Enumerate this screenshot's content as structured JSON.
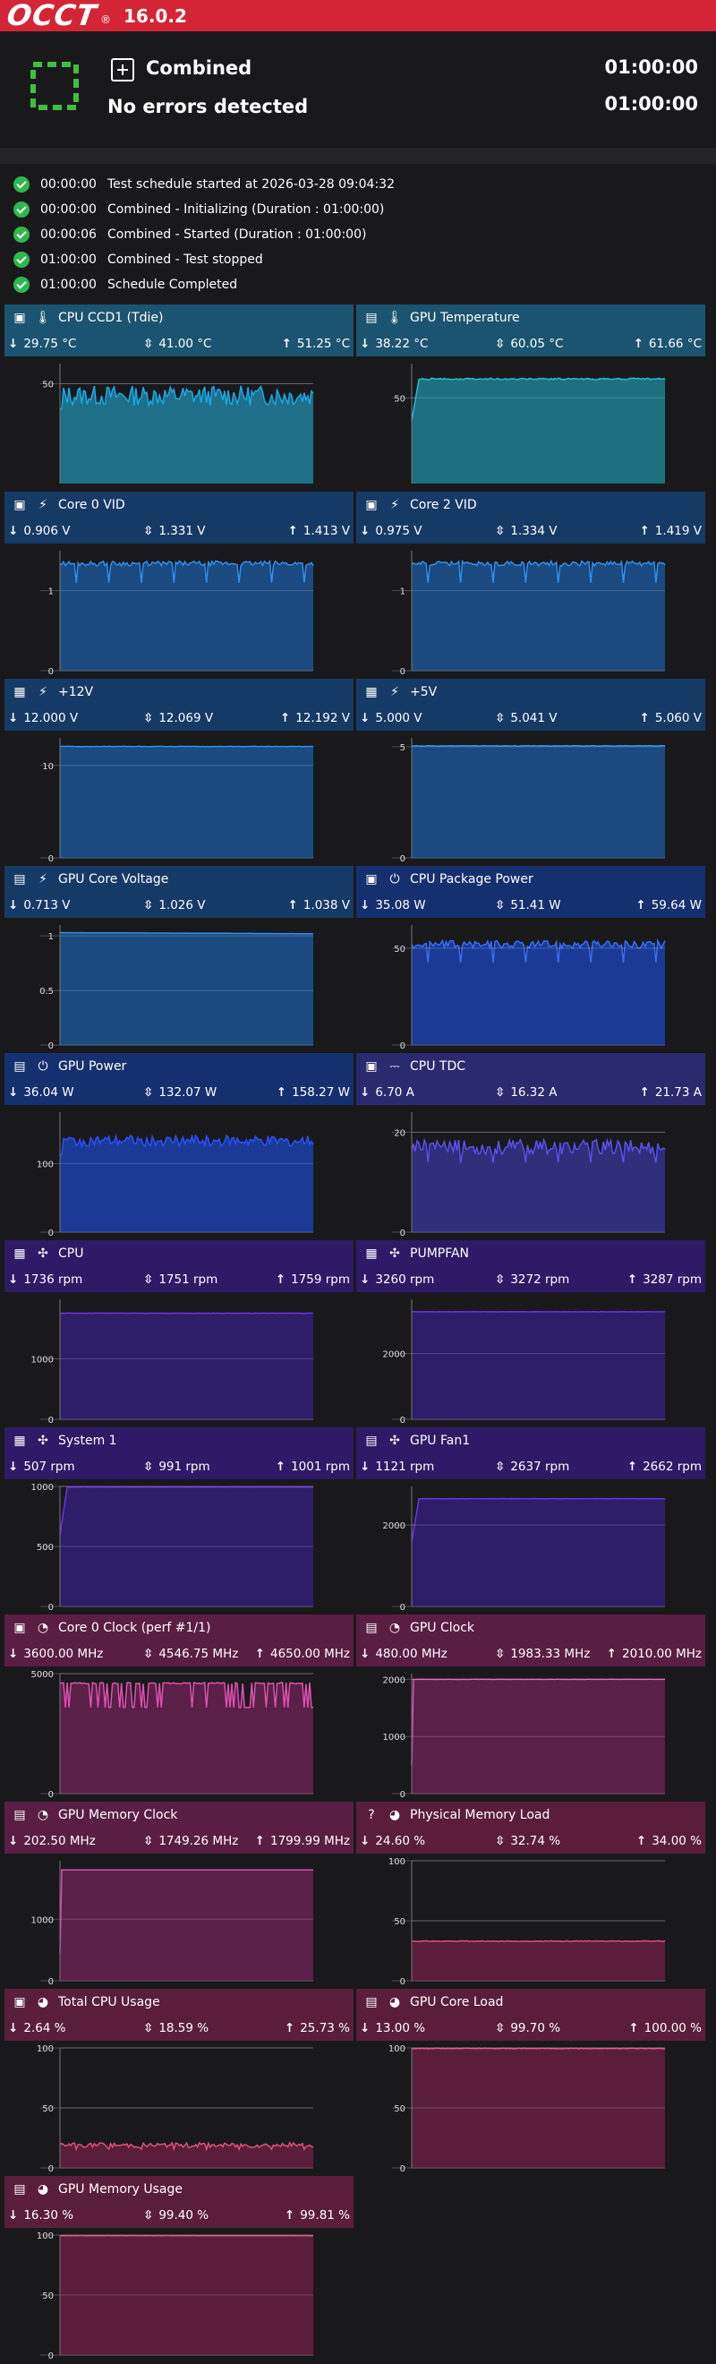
{
  "app": {
    "logo": "OCCT",
    "reg_mark": "®",
    "version": "16.0.2"
  },
  "header": {
    "test_name": "Combined",
    "status": "No errors detected",
    "time_elapsed": "01:00:00",
    "time_total": "01:00:00"
  },
  "colors": {
    "topbar": "#d32535",
    "success": "#2db84d",
    "spinner": "#3fbf3f"
  },
  "log": [
    {
      "time": "00:00:00",
      "text": "Test schedule started at 2026-03-28 09:04:32"
    },
    {
      "time": "00:00:00",
      "text": "Combined - Initializing (Duration : 01:00:00)"
    },
    {
      "time": "00:00:06",
      "text": "Combined - Started (Duration : 01:00:00)"
    },
    {
      "time": "01:00:00",
      "text": "Combined - Test stopped"
    },
    {
      "time": "01:00:00",
      "text": "Schedule Completed"
    }
  ],
  "panels": [
    {
      "title": "CPU CCD1 (Tdie)",
      "icon": "cpu-chip-icon",
      "sensor_icon": "temperature-icon",
      "min": "29.75 °C",
      "avg": "41.00 °C",
      "max": "51.25 °C",
      "header_color": "#1b5470",
      "plot_color": "#1f6f8a",
      "line_color": "#1aa9e6",
      "ymax": 60,
      "ticks": [
        "50"
      ],
      "tick_vals": [
        50
      ],
      "level": 44,
      "noise": 5,
      "shape": "noisy-start"
    },
    {
      "title": "GPU Temperature",
      "icon": "gpu-card-icon",
      "sensor_icon": "temperature-icon",
      "min": "38.22 °C",
      "avg": "60.05 °C",
      "max": "61.66 °C",
      "header_color": "#1b5470",
      "plot_color": "#1e6f80",
      "line_color": "#20c0d0",
      "ymax": 70,
      "ticks": [
        "50"
      ],
      "tick_vals": [
        50
      ],
      "level": 61,
      "noise": 0.5,
      "shape": "ramp"
    },
    {
      "title": "Core 0 VID",
      "icon": "cpu-chip-icon",
      "sensor_icon": "voltage-icon",
      "min": "0.906 V",
      "avg": "1.331 V",
      "max": "1.413 V",
      "header_color": "#163a66",
      "plot_color": "#1a4a80",
      "line_color": "#2e8ff0",
      "ymax": 1.5,
      "ticks": [
        "1",
        "0"
      ],
      "tick_vals": [
        1,
        0
      ],
      "level": 1.34,
      "noise": 0.03,
      "shape": "dips"
    },
    {
      "title": "Core 2 VID",
      "icon": "cpu-chip-icon",
      "sensor_icon": "voltage-icon",
      "min": "0.975 V",
      "avg": "1.334 V",
      "max": "1.419 V",
      "header_color": "#163a66",
      "plot_color": "#1a4a80",
      "line_color": "#2e8ff0",
      "ymax": 1.5,
      "ticks": [
        "1",
        "0"
      ],
      "tick_vals": [
        1,
        0
      ],
      "level": 1.34,
      "noise": 0.03,
      "shape": "dips"
    },
    {
      "title": "+12V",
      "icon": "motherboard-icon",
      "sensor_icon": "voltage-icon",
      "min": "12.000 V",
      "avg": "12.069 V",
      "max": "12.192 V",
      "header_color": "#163a66",
      "plot_color": "#1a4a80",
      "line_color": "#2e8ff0",
      "ymax": 13,
      "ticks": [
        "10",
        "0"
      ],
      "tick_vals": [
        10,
        0
      ],
      "level": 12.07,
      "noise": 0.02,
      "shape": "flat"
    },
    {
      "title": "+5V",
      "icon": "motherboard-icon",
      "sensor_icon": "voltage-icon",
      "min": "5.000 V",
      "avg": "5.041 V",
      "max": "5.060 V",
      "header_color": "#163a66",
      "plot_color": "#1a4a80",
      "line_color": "#2e8ff0",
      "ymax": 5.4,
      "ticks": [
        "5",
        "0"
      ],
      "tick_vals": [
        5,
        0
      ],
      "level": 5.04,
      "noise": 0.01,
      "shape": "flat"
    },
    {
      "title": "GPU Core Voltage",
      "icon": "gpu-card-icon",
      "sensor_icon": "voltage-icon",
      "min": "0.713 V",
      "avg": "1.026 V",
      "max": "1.038 V",
      "header_color": "#163a66",
      "plot_color": "#1a4a80",
      "line_color": "#2e8ff0",
      "ymax": 1.1,
      "ticks": [
        "1",
        "0.5",
        "0"
      ],
      "tick_vals": [
        1,
        0.5,
        0
      ],
      "level": 1.02,
      "noise": 0.002,
      "shape": "slight-decay"
    },
    {
      "title": "CPU Package Power",
      "icon": "cpu-chip-icon",
      "sensor_icon": "power-plug-icon",
      "min": "35.08 W",
      "avg": "51.41 W",
      "max": "59.64 W",
      "header_color": "#15306e",
      "plot_color": "#1a3a96",
      "line_color": "#3a6cf5",
      "ymax": 62,
      "ticks": [
        "50",
        "0"
      ],
      "tick_vals": [
        50,
        0
      ],
      "level": 52,
      "noise": 2,
      "shape": "dips"
    },
    {
      "title": "GPU Power",
      "icon": "gpu-card-icon",
      "sensor_icon": "power-plug-icon",
      "min": "36.04 W",
      "avg": "132.07 W",
      "max": "158.27 W",
      "header_color": "#15306e",
      "plot_color": "#1a3a96",
      "line_color": "#2a50ff",
      "ymax": 175,
      "ticks": [
        "100",
        "0"
      ],
      "tick_vals": [
        100,
        0
      ],
      "level": 133,
      "noise": 8,
      "shape": "noisy-start"
    },
    {
      "title": "CPU TDC",
      "icon": "cpu-chip-icon",
      "sensor_icon": "current-icon",
      "min": "6.70 A",
      "avg": "16.32 A",
      "max": "21.73 A",
      "header_color": "#2a2a6e",
      "plot_color": "#2e2e7a",
      "line_color": "#5b4ff0",
      "ymax": 24,
      "ticks": [
        "20",
        "0"
      ],
      "tick_vals": [
        20,
        0
      ],
      "level": 17,
      "noise": 1.5,
      "shape": "dips"
    },
    {
      "title": "CPU",
      "icon": "motherboard-icon",
      "sensor_icon": "fan-icon",
      "min": "1736 rpm",
      "avg": "1751 rpm",
      "max": "1759 rpm",
      "header_color": "#2e1a66",
      "plot_color": "#2e1e6a",
      "line_color": "#6a34e8",
      "ymax": 1980,
      "ticks": [
        "1000",
        "0"
      ],
      "tick_vals": [
        1000,
        0
      ],
      "level": 1751,
      "noise": 2,
      "shape": "flat"
    },
    {
      "title": "PUMPFAN",
      "icon": "motherboard-icon",
      "sensor_icon": "fan-icon",
      "min": "3260 rpm",
      "avg": "3272 rpm",
      "max": "3287 rpm",
      "header_color": "#2e1a66",
      "plot_color": "#2e1e6a",
      "line_color": "#6a34e8",
      "ymax": 3650,
      "ticks": [
        "2000",
        "0"
      ],
      "tick_vals": [
        2000,
        0
      ],
      "level": 3272,
      "noise": 3,
      "shape": "flat"
    },
    {
      "title": "System 1",
      "icon": "motherboard-icon",
      "sensor_icon": "fan-icon",
      "min": "507 rpm",
      "avg": "991 rpm",
      "max": "1001 rpm",
      "header_color": "#2e1a66",
      "plot_color": "#2e1e6a",
      "line_color": "#6a34e8",
      "ymax": 1000,
      "ticks": [
        "1000",
        "500",
        "0"
      ],
      "tick_vals": [
        1000,
        500,
        0
      ],
      "level": 995,
      "noise": 1,
      "shape": "ramp"
    },
    {
      "title": "GPU Fan1",
      "icon": "gpu-card-icon",
      "sensor_icon": "fan-icon",
      "min": "1121 rpm",
      "avg": "2637 rpm",
      "max": "2662 rpm",
      "header_color": "#2e1a66",
      "plot_color": "#2e1e6a",
      "line_color": "#6a34e8",
      "ymax": 2950,
      "ticks": [
        "2000",
        "0"
      ],
      "tick_vals": [
        2000,
        0
      ],
      "level": 2650,
      "noise": 2,
      "shape": "ramp"
    },
    {
      "title": "Core 0 Clock (perf #1/1)",
      "icon": "cpu-chip-icon",
      "sensor_icon": "clock-gauge-icon",
      "min": "3600.00 MHz",
      "avg": "4546.75 MHz",
      "max": "4650.00 MHz",
      "header_color": "#5a1e44",
      "plot_color": "#5a2048",
      "line_color": "#e050b0",
      "ymax": 5000,
      "ticks": [
        "5000",
        "0"
      ],
      "tick_vals": [
        5000,
        0
      ],
      "level": 4600,
      "noise": 30,
      "shape": "clockdips"
    },
    {
      "title": "GPU Clock",
      "icon": "gpu-card-icon",
      "sensor_icon": "clock-gauge-icon",
      "min": "480.00 MHz",
      "avg": "1983.33 MHz",
      "max": "2010.00 MHz",
      "header_color": "#5a1e44",
      "plot_color": "#5a2048",
      "line_color": "#e050b0",
      "ymax": 2100,
      "ticks": [
        "2000",
        "1000",
        "0"
      ],
      "tick_vals": [
        2000,
        1000,
        0
      ],
      "level": 2000,
      "noise": 2,
      "shape": "step-start"
    },
    {
      "title": "GPU Memory Clock",
      "icon": "gpu-card-icon",
      "sensor_icon": "clock-gauge-icon",
      "min": "202.50 MHz",
      "avg": "1749.26 MHz",
      "max": "1799.99 MHz",
      "header_color": "#5a1e44",
      "plot_color": "#5a2048",
      "line_color": "#e050b0",
      "ymax": 1950,
      "ticks": [
        "1000",
        "0"
      ],
      "tick_vals": [
        1000,
        0
      ],
      "level": 1800,
      "noise": 0,
      "shape": "step-start"
    },
    {
      "title": "Physical Memory Load",
      "icon": "question-circle-icon",
      "sensor_icon": "load-gauge-icon",
      "min": "24.60 %",
      "avg": "32.74 %",
      "max": "34.00 %",
      "header_color": "#5a1e3a",
      "plot_color": "#5a1e3a",
      "line_color": "#e0507a",
      "ymax": 100,
      "ticks": [
        "100",
        "50",
        "0"
      ],
      "tick_vals": [
        100,
        50,
        0
      ],
      "level": 33,
      "noise": 0.3,
      "shape": "flat"
    },
    {
      "title": "Total CPU Usage",
      "icon": "cpu-chip-icon",
      "sensor_icon": "load-gauge-icon",
      "min": "2.64 %",
      "avg": "18.59 %",
      "max": "25.73 %",
      "header_color": "#5a1e3a",
      "plot_color": "#5a1e3a",
      "line_color": "#e0507a",
      "ymax": 100,
      "ticks": [
        "100",
        "50",
        "0"
      ],
      "tick_vals": [
        100,
        50,
        0
      ],
      "level": 19,
      "noise": 2,
      "shape": "dips"
    },
    {
      "title": "GPU Core Load",
      "icon": "gpu-card-icon",
      "sensor_icon": "load-gauge-icon",
      "min": "13.00 %",
      "avg": "99.70 %",
      "max": "100.00 %",
      "header_color": "#5a1e3a",
      "plot_color": "#5a1e3a",
      "line_color": "#e0507a",
      "ymax": 100,
      "ticks": [
        "100",
        "50",
        "0"
      ],
      "tick_vals": [
        100,
        50,
        0
      ],
      "level": 99.5,
      "noise": 0.3,
      "shape": "flat"
    },
    {
      "title": "GPU Memory Usage",
      "icon": "gpu-card-icon",
      "sensor_icon": "load-gauge-icon",
      "min": "16.30 %",
      "avg": "99.40 %",
      "max": "99.81 %",
      "header_color": "#5a1e3a",
      "plot_color": "#5a1e3a",
      "line_color": "#e0507a",
      "ymax": 100,
      "ticks": [
        "100",
        "50",
        "0"
      ],
      "tick_vals": [
        100,
        50,
        0
      ],
      "level": 99.5,
      "noise": 0.1,
      "shape": "flat"
    }
  ]
}
